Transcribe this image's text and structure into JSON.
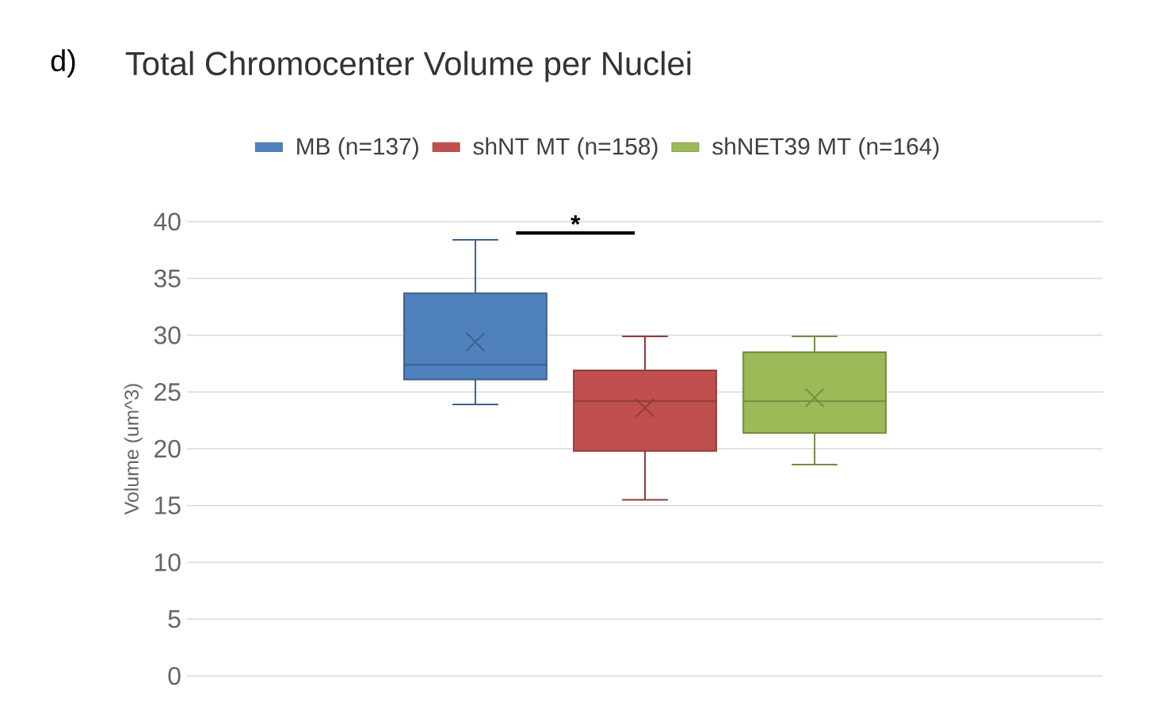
{
  "chart_data": {
    "type": "box",
    "title": "Total Chromocenter Volume per Nuclei",
    "ylabel": "Volume (um^3)",
    "annotations": [
      "d)",
      "*"
    ],
    "categories": [
      null
    ],
    "series": [
      {
        "name": "MB (n=137)",
        "color": "#4f81bd",
        "boxes": [
          {
            "low": 23.9,
            "q1": 26.1,
            "median": 27.4,
            "q3": 33.7,
            "high": 38.4,
            "mean": 29.4
          }
        ]
      },
      {
        "name": "shNT MT (n=158)",
        "color": "#c0504d",
        "boxes": [
          {
            "low": 15.5,
            "q1": 19.8,
            "median": 24.2,
            "q3": 26.9,
            "high": 29.9,
            "mean": 23.6
          }
        ]
      },
      {
        "name": "shNET39 MT (n=164)",
        "color": "#9bbb59",
        "boxes": [
          {
            "low": 18.6,
            "q1": 21.4,
            "median": 24.2,
            "q3": 28.5,
            "high": 29.9,
            "mean": 24.5
          }
        ]
      }
    ],
    "ylim": [
      0,
      40
    ],
    "yticks": [
      0,
      5,
      10,
      15,
      20,
      25,
      30,
      35,
      40
    ],
    "grid": "y",
    "legend": "top"
  }
}
